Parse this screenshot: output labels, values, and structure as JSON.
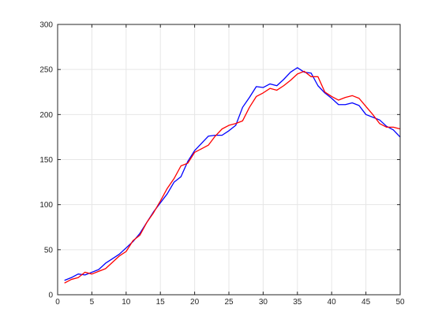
{
  "chart_data": {
    "type": "line",
    "title": "",
    "xlabel": "",
    "ylabel": "",
    "xlim": [
      0,
      50
    ],
    "ylim": [
      0,
      300
    ],
    "xticks": [
      0,
      5,
      10,
      15,
      20,
      25,
      30,
      35,
      40,
      45,
      50
    ],
    "yticks": [
      0,
      50,
      100,
      150,
      200,
      250,
      300
    ],
    "xtick_labels": [
      "0",
      "5",
      "10",
      "15",
      "20",
      "25",
      "30",
      "35",
      "40",
      "45",
      "50"
    ],
    "ytick_labels": [
      "0",
      "50",
      "100",
      "150",
      "200",
      "250",
      "300"
    ],
    "grid": true,
    "legend": "none",
    "x": [
      1,
      2,
      3,
      4,
      5,
      6,
      7,
      8,
      9,
      10,
      11,
      12,
      13,
      14,
      15,
      16,
      17,
      18,
      19,
      20,
      21,
      22,
      23,
      24,
      25,
      26,
      27,
      28,
      29,
      30,
      31,
      32,
      33,
      34,
      35,
      36,
      37,
      38,
      39,
      40,
      41,
      42,
      43,
      44,
      45,
      46,
      47,
      48,
      49,
      50
    ],
    "series": [
      {
        "color": "#0000ff",
        "values": [
          16,
          19,
          23,
          22,
          25,
          28,
          35,
          40,
          45,
          52,
          59,
          68,
          80,
          92,
          102,
          112,
          125,
          131,
          148,
          160,
          168,
          176,
          177,
          177,
          182,
          188,
          208,
          219,
          231,
          230,
          234,
          232,
          239,
          247,
          252,
          247,
          246,
          232,
          224,
          218,
          211,
          211,
          213,
          210,
          200,
          197,
          194,
          187,
          183,
          175
        ]
      },
      {
        "color": "#ff0000",
        "values": [
          13,
          17,
          19,
          25,
          23,
          26,
          29,
          36,
          43,
          48,
          60,
          66,
          80,
          91,
          104,
          118,
          129,
          143,
          146,
          158,
          162,
          166,
          176,
          184,
          188,
          190,
          193,
          208,
          220,
          224,
          229,
          227,
          232,
          238,
          245,
          248,
          242,
          242,
          225,
          220,
          216,
          219,
          221,
          218,
          209,
          200,
          190,
          186,
          186,
          184
        ]
      }
    ]
  }
}
